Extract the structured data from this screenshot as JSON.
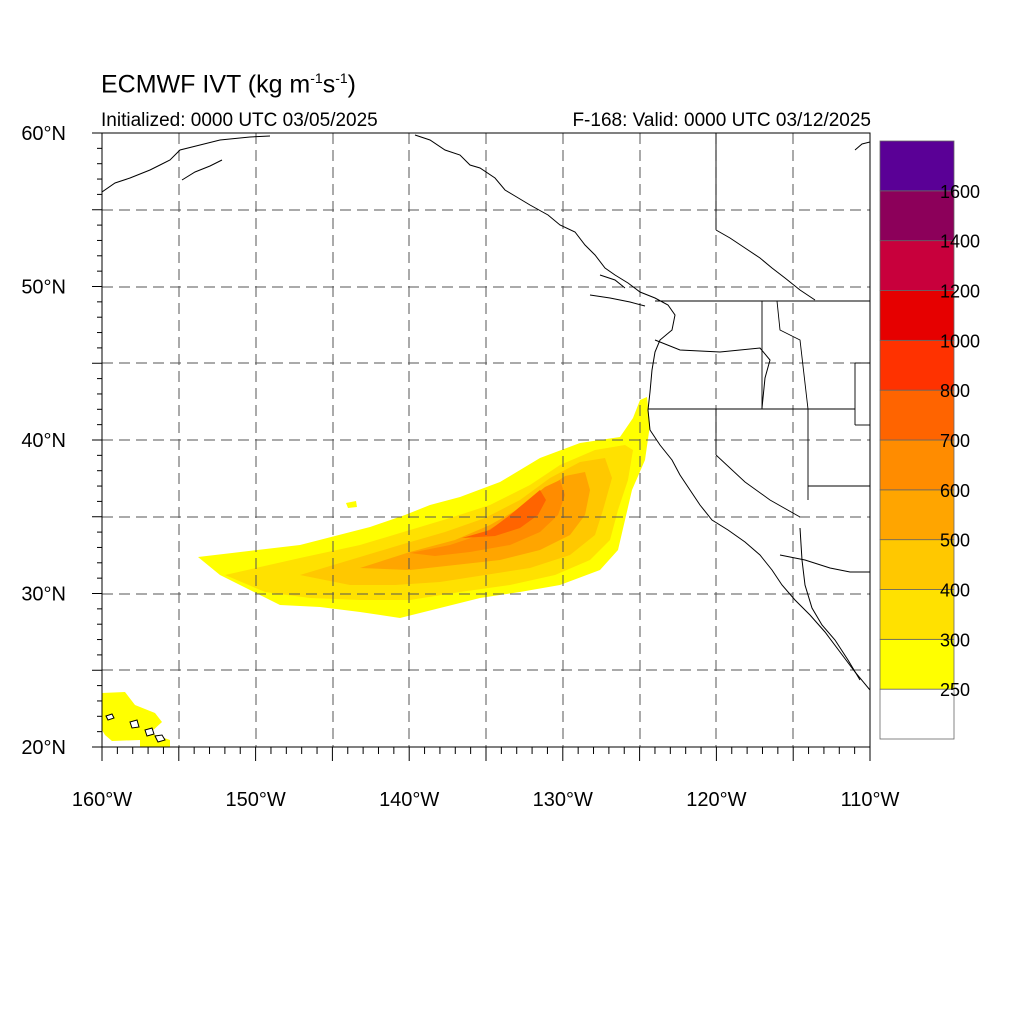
{
  "title": {
    "main": "ECMWF IVT (kg m",
    "exp1": "-1",
    "mid": "s",
    "exp2": "-1",
    "end": ")"
  },
  "subtitle_left": "Initialized: 0000 UTC 03/05/2025",
  "subtitle_right": "F-168: Valid: 0000 UTC 03/12/2025",
  "map": {
    "lon_range": [
      -160,
      -110
    ],
    "lat_range": [
      20,
      60
    ],
    "lat_labels": [
      "60°N",
      "50°N",
      "40°N",
      "30°N",
      "20°N"
    ],
    "lat_values": [
      60,
      50,
      40,
      30,
      20
    ],
    "lon_labels": [
      "160°W",
      "150°W",
      "140°W",
      "130°W",
      "120°W",
      "110°W"
    ],
    "lon_values": [
      -160,
      -150,
      -140,
      -130,
      -120,
      -110
    ],
    "grid": "dashed every 5 degrees"
  },
  "colorbar": {
    "labels": [
      "1600",
      "1400",
      "1200",
      "1000",
      "800",
      "700",
      "600",
      "500",
      "400",
      "300",
      "250"
    ],
    "colors": [
      "#ffffff",
      "#ffff00",
      "#ffe100",
      "#ffc800",
      "#ffa500",
      "#ff8c00",
      "#ff6400",
      "#ff3200",
      "#e60000",
      "#c8003c",
      "#8c005a",
      "#5a0096"
    ]
  }
}
